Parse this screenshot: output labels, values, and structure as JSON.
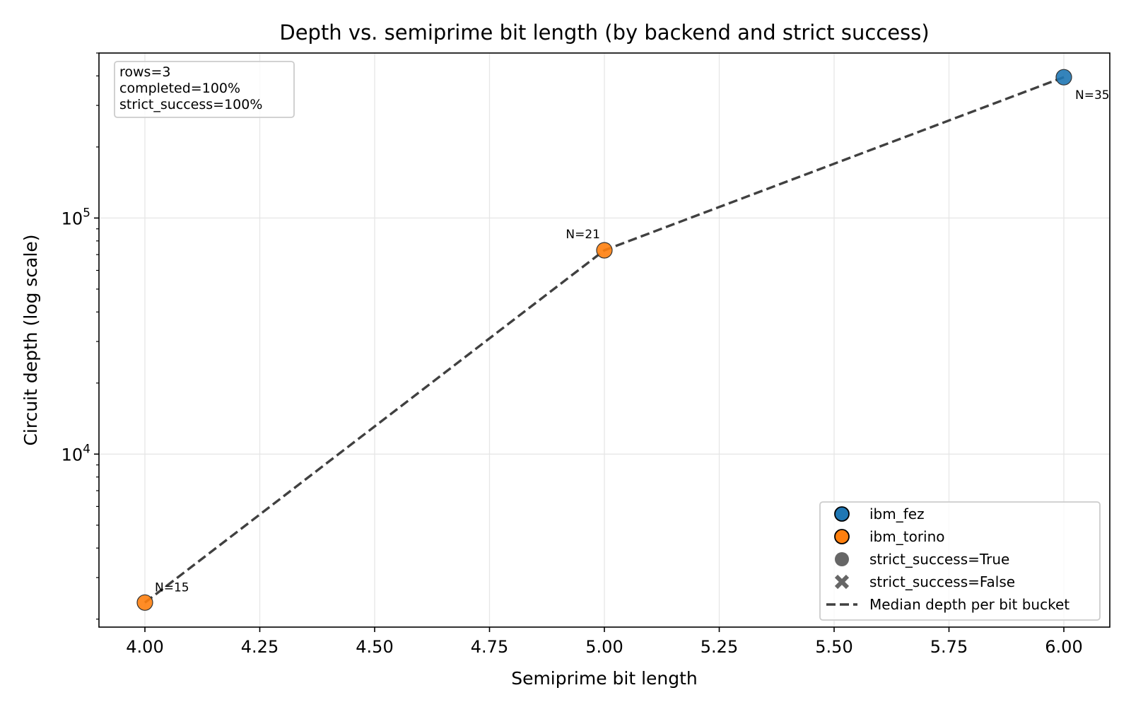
{
  "chart_data": {
    "type": "scatter",
    "title": "Depth vs. semiprime bit length (by backend and strict success)",
    "xlabel": "Semiprime bit length",
    "ylabel": "Circuit depth (log scale)",
    "xlim": [
      3.9,
      6.1
    ],
    "ylim": [
      1850,
      500000
    ],
    "yscale": "log",
    "grid": true,
    "xticks": [
      4.0,
      4.25,
      4.5,
      4.75,
      5.0,
      5.25,
      5.5,
      5.75,
      6.0
    ],
    "xtick_labels": [
      "4.00",
      "4.25",
      "4.50",
      "4.75",
      "5.00",
      "5.25",
      "5.50",
      "5.75",
      "6.00"
    ],
    "yticks": [
      10000,
      100000
    ],
    "ytick_labels": [
      {
        "base": "10",
        "exp": "4"
      },
      {
        "base": "10",
        "exp": "5"
      }
    ],
    "points": [
      {
        "x": 4,
        "y": 2350,
        "backend": "ibm_torino",
        "strict_success": true,
        "label": "N=15"
      },
      {
        "x": 5,
        "y": 73000,
        "backend": "ibm_torino",
        "strict_success": true,
        "label": "N=21"
      },
      {
        "x": 6,
        "y": 395000,
        "backend": "ibm_fez",
        "strict_success": true,
        "label": "N=35"
      }
    ],
    "median_line": {
      "name": "Median depth per bit bucket",
      "x": [
        4,
        5,
        6
      ],
      "y": [
        2350,
        73000,
        395000
      ]
    },
    "summary": [
      "rows=3",
      "completed=100%",
      "strict_success=100%"
    ],
    "legend_position": "lower right",
    "legend": [
      {
        "label": "ibm_fez",
        "marker": "circle",
        "color": "#1f77b4"
      },
      {
        "label": "ibm_torino",
        "marker": "circle",
        "color": "#ff7f0e"
      },
      {
        "label": "strict_success=True",
        "marker": "circle",
        "color": "#666666"
      },
      {
        "label": "strict_success=False",
        "marker": "cross",
        "color": "#666666"
      },
      {
        "label": "Median depth per bit bucket",
        "marker": "dash",
        "color": "#404040"
      }
    ],
    "colors": {
      "ibm_fez": "#1f77b4",
      "ibm_torino": "#ff7f0e",
      "median_line": "#404040"
    }
  }
}
